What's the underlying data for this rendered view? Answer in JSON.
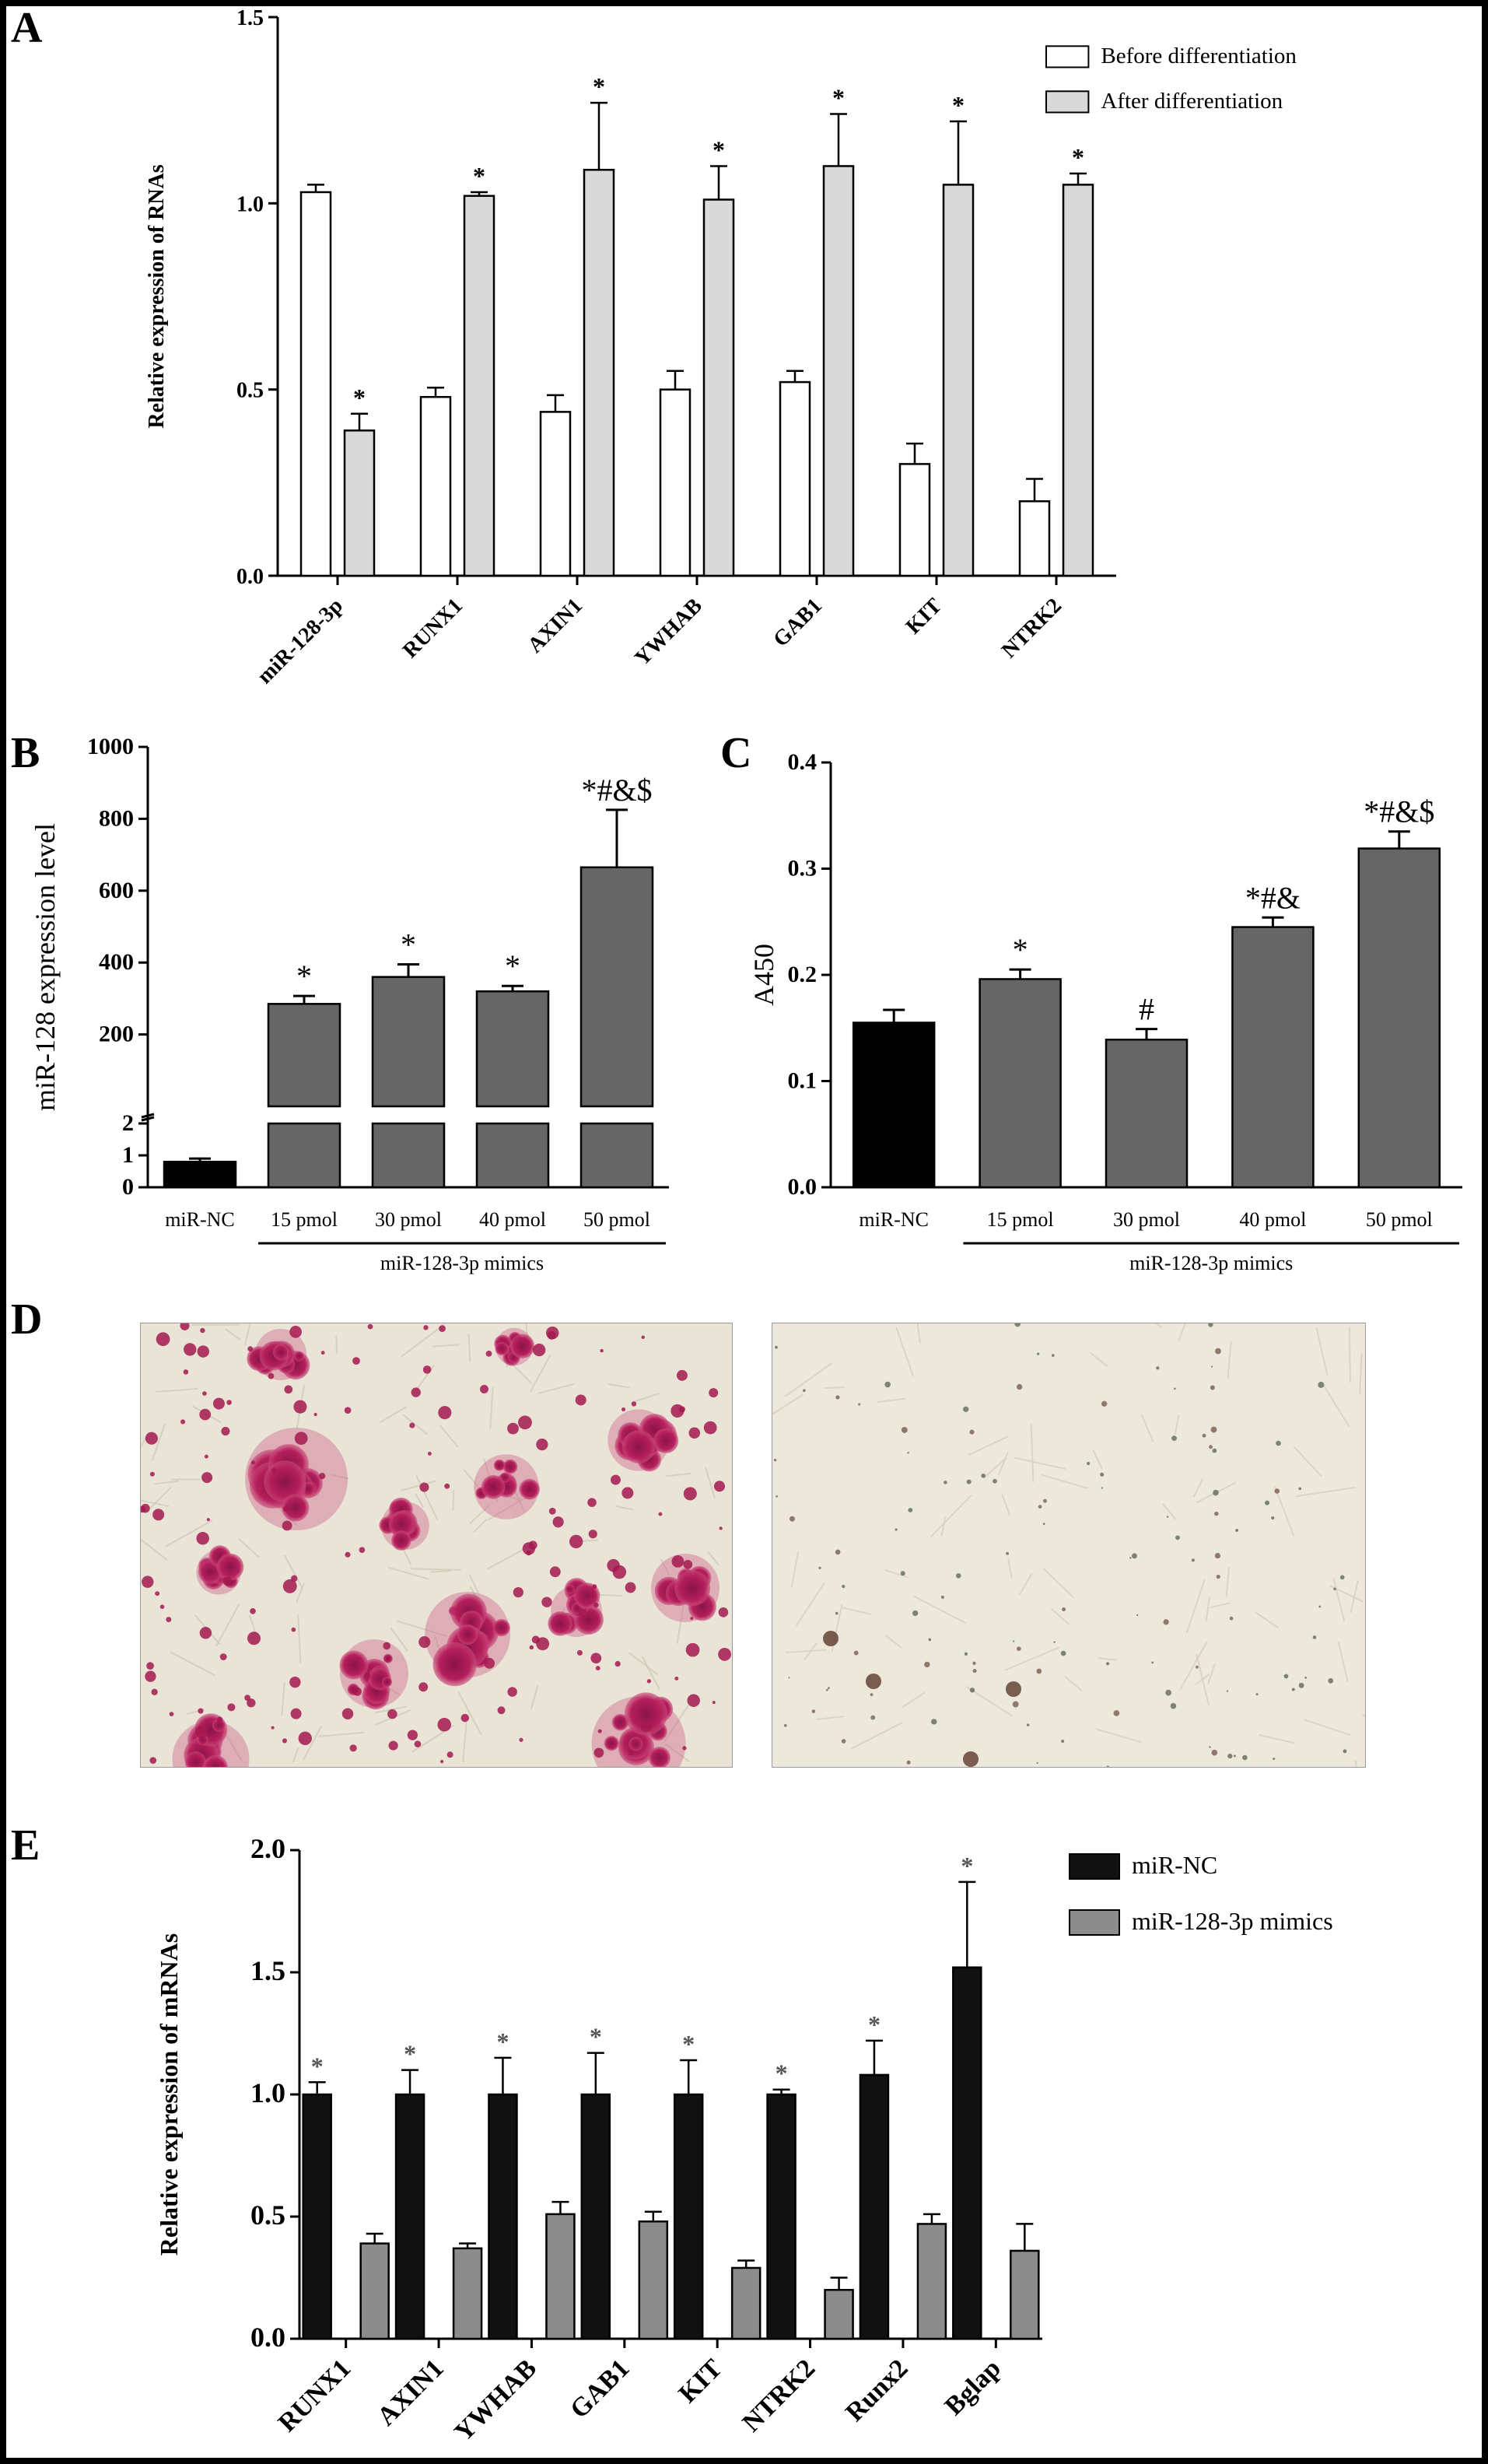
{
  "panels": {
    "A": {
      "letter": "A",
      "chart_data": {
        "type": "bar",
        "categories": [
          "miR-128-3p",
          "RUNX1",
          "AXIN1",
          "YWHAB",
          "GAB1",
          "KIT",
          "NTRK2"
        ],
        "series": [
          {
            "name": "Before differentiation",
            "values": [
              1.03,
              0.48,
              0.44,
              0.5,
              0.52,
              0.3,
              0.2
            ],
            "errors": [
              0.02,
              0.025,
              0.045,
              0.05,
              0.03,
              0.055,
              0.06
            ],
            "color": "#ffffff"
          },
          {
            "name": "After differentiation",
            "values": [
              0.39,
              1.02,
              1.09,
              1.01,
              1.1,
              1.05,
              1.05
            ],
            "errors": [
              0.045,
              0.01,
              0.18,
              0.09,
              0.14,
              0.17,
              0.03
            ],
            "color": "#d9d9d9"
          }
        ],
        "annotations": [
          [
            "",
            "*"
          ],
          [
            "",
            "*"
          ],
          [
            "",
            "*"
          ],
          [
            "",
            "*"
          ],
          [
            "",
            "*"
          ],
          [
            "",
            "*"
          ],
          [
            "",
            "*"
          ]
        ],
        "ylabel": "Relative expression of RNAs",
        "ylim": [
          0,
          1.5
        ],
        "yticks": [
          "0.0",
          "0.5",
          "1.0",
          "1.5"
        ],
        "legend_position": "top-right",
        "grid": false
      }
    },
    "B": {
      "letter": "B",
      "chart_data": {
        "type": "bar",
        "categories": [
          "miR-NC",
          "15 pmol",
          "30 pmol",
          "40 pmol",
          "50 pmol"
        ],
        "values": [
          0.8,
          285,
          360,
          320,
          665
        ],
        "errors": [
          0.1,
          22,
          35,
          15,
          160
        ],
        "colors": [
          "#000000",
          "#666666",
          "#666666",
          "#666666",
          "#666666"
        ],
        "annotations": [
          "",
          "*",
          "*",
          "*",
          "*#&$"
        ],
        "ylabel": "miR-128 expression level",
        "yaxis_break": {
          "lower": [
            0,
            2
          ],
          "upper": [
            0,
            1000
          ]
        },
        "yticks_lower": [
          "0",
          "1",
          "2"
        ],
        "yticks_upper": [
          "200",
          "400",
          "600",
          "800",
          "1000"
        ],
        "group_label": "miR-128-3p mimics",
        "grid": false
      }
    },
    "C": {
      "letter": "C",
      "chart_data": {
        "type": "bar",
        "categories": [
          "miR-NC",
          "15 pmol",
          "30 pmol",
          "40 pmol",
          "50 pmol"
        ],
        "values": [
          0.155,
          0.196,
          0.139,
          0.245,
          0.319
        ],
        "errors": [
          0.012,
          0.009,
          0.01,
          0.009,
          0.016
        ],
        "colors": [
          "#000000",
          "#666666",
          "#666666",
          "#666666",
          "#666666"
        ],
        "annotations": [
          "",
          "*",
          "#",
          "*#&",
          "*#&$"
        ],
        "ylabel": "A450",
        "ylim": [
          0,
          0.4
        ],
        "yticks": [
          "0.0",
          "0.1",
          "0.2",
          "0.3",
          "0.4"
        ],
        "group_label": "miR-128-3p mimics",
        "grid": false
      }
    },
    "D": {
      "letter": "D"
    },
    "E": {
      "letter": "E",
      "chart_data": {
        "type": "bar",
        "categories": [
          "RUNX1",
          "AXIN1",
          "YWHAB",
          "GAB1",
          "KIT",
          "NTRK2",
          "Runx2",
          "Bglap"
        ],
        "series": [
          {
            "name": "miR-NC",
            "values": [
              1.0,
              1.0,
              1.0,
              1.0,
              1.0,
              1.0,
              1.08,
              1.52
            ],
            "errors": [
              0.05,
              0.1,
              0.15,
              0.17,
              0.14,
              0.02,
              0.14,
              0.35
            ],
            "color": "#111111"
          },
          {
            "name": "miR-128-3p mimics",
            "values": [
              0.39,
              0.37,
              0.51,
              0.48,
              0.29,
              0.2,
              0.47,
              0.36
            ],
            "errors": [
              0.04,
              0.02,
              0.05,
              0.04,
              0.03,
              0.05,
              0.04,
              0.11
            ],
            "color": "#8c8c8c"
          }
        ],
        "annotations": [
          [
            "*",
            ""
          ],
          [
            "*",
            ""
          ],
          [
            "*",
            ""
          ],
          [
            "*",
            ""
          ],
          [
            "*",
            ""
          ],
          [
            "*",
            ""
          ],
          [
            "*",
            ""
          ],
          [
            "*",
            ""
          ]
        ],
        "ylabel": "Relative expression of mRNAs",
        "ylim": [
          0,
          2.0
        ],
        "yticks": [
          "0.0",
          "0.5",
          "1.0",
          "1.5",
          "2.0"
        ],
        "legend_position": "top-right",
        "grid": false
      }
    }
  }
}
